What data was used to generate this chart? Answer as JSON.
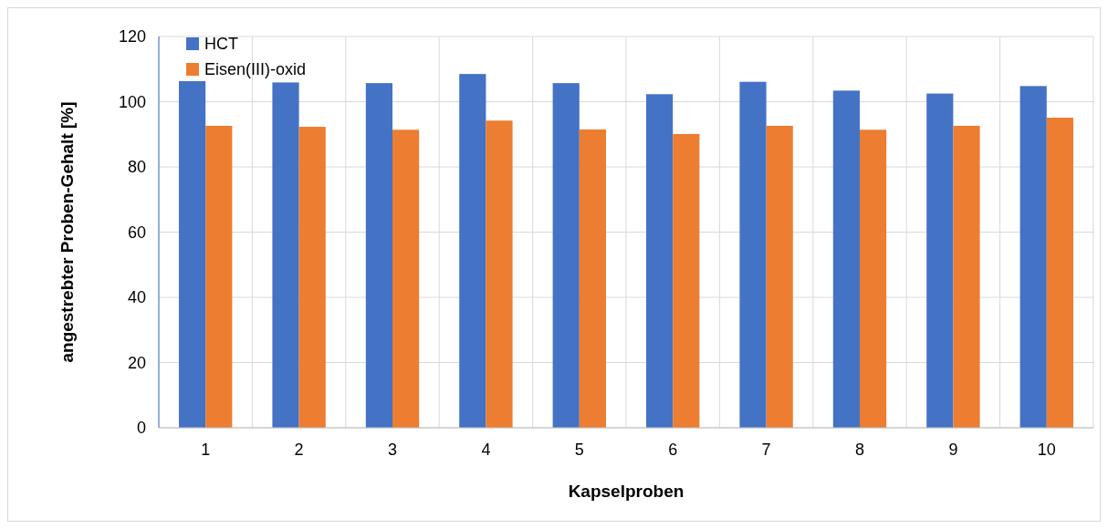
{
  "chart_data": {
    "type": "bar",
    "xlabel": "Kapselproben",
    "ylabel": "angestrebter Proben-Gehalt [%]",
    "categories": [
      "1",
      "2",
      "3",
      "4",
      "5",
      "6",
      "7",
      "8",
      "9",
      "10"
    ],
    "series": [
      {
        "name": "HCT",
        "color": "#4472c4",
        "values": [
          106.3,
          105.9,
          105.7,
          108.5,
          105.7,
          102.3,
          106.1,
          103.4,
          102.5,
          104.8
        ]
      },
      {
        "name": "Eisen(III)-oxid",
        "color": "#ed7d31",
        "values": [
          92.6,
          92.3,
          91.4,
          94.2,
          91.5,
          90.1,
          92.6,
          91.4,
          92.6,
          95.1
        ]
      }
    ],
    "ylim": [
      0,
      120
    ],
    "yticks": [
      0,
      20,
      40,
      60,
      80,
      100,
      120
    ],
    "grid": true,
    "legend": "top left"
  }
}
